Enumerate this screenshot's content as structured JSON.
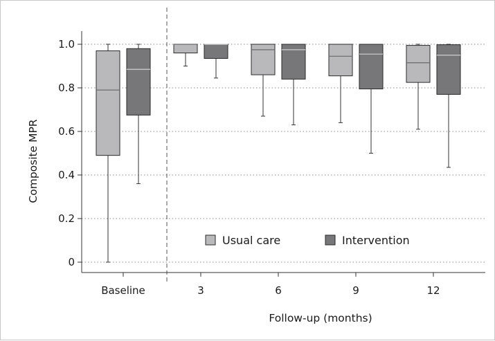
{
  "chart_data": {
    "type": "box",
    "title": "",
    "xlabel": "Follow-up (months)",
    "ylabel": "Composite MPR",
    "ylim": [
      0,
      1.05
    ],
    "y_ticks": [
      "0",
      "0.2",
      "0.4",
      "0.6",
      "0.8",
      "1.0"
    ],
    "y_tick_values": [
      0,
      0.2,
      0.4,
      0.6,
      0.8,
      1.0
    ],
    "categories": [
      "Baseline",
      "3",
      "6",
      "9",
      "12"
    ],
    "grid": "horizontal dotted",
    "divider_after_category": "Baseline",
    "legend_position": "bottom-right",
    "series": [
      {
        "name": "Usual care",
        "color": "#b9b9bb",
        "boxes": [
          {
            "min": 0.0,
            "q1": 0.49,
            "median": 0.79,
            "q3": 0.97,
            "max": 1.0
          },
          {
            "min": 0.9,
            "q1": 0.96,
            "median": 1.0,
            "q3": 1.0,
            "max": 1.0
          },
          {
            "min": 0.67,
            "q1": 0.86,
            "median": 0.975,
            "q3": 1.0,
            "max": 1.0
          },
          {
            "min": 0.64,
            "q1": 0.855,
            "median": 0.945,
            "q3": 1.0,
            "max": 1.0
          },
          {
            "min": 0.61,
            "q1": 0.825,
            "median": 0.915,
            "q3": 0.995,
            "max": 1.0
          }
        ]
      },
      {
        "name": "Intervention",
        "color": "#777779",
        "boxes": [
          {
            "min": 0.36,
            "q1": 0.675,
            "median": 0.885,
            "q3": 0.98,
            "max": 1.0
          },
          {
            "min": 0.845,
            "q1": 0.935,
            "median": 1.0,
            "q3": 1.0,
            "max": 1.0
          },
          {
            "min": 0.63,
            "q1": 0.84,
            "median": 0.975,
            "q3": 1.0,
            "max": 1.0
          },
          {
            "min": 0.5,
            "q1": 0.795,
            "median": 0.955,
            "q3": 1.0,
            "max": 1.0
          },
          {
            "min": 0.435,
            "q1": 0.77,
            "median": 0.95,
            "q3": 0.998,
            "max": 1.0
          }
        ]
      }
    ]
  }
}
